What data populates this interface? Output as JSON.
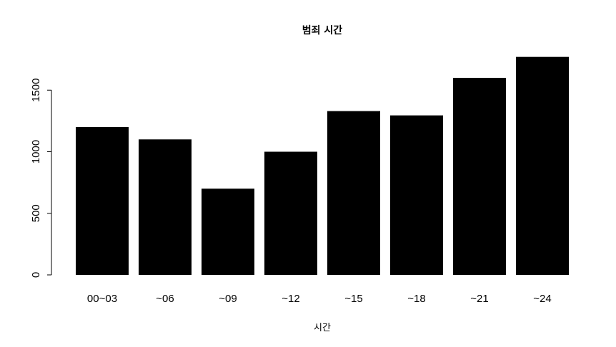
{
  "chart_data": {
    "type": "bar",
    "title": "범죄 시간",
    "xlabel": "시간",
    "ylabel": "",
    "categories": [
      "00~03",
      "~06",
      "~09",
      "~12",
      "~15",
      "~18",
      "~21",
      "~24"
    ],
    "values": [
      1200,
      1100,
      700,
      1000,
      1330,
      1295,
      1600,
      1770
    ],
    "ylim": [
      0,
      1770
    ],
    "yticks": [
      0,
      500,
      1000,
      1500
    ],
    "bar_color": "#000000",
    "grid": false
  }
}
